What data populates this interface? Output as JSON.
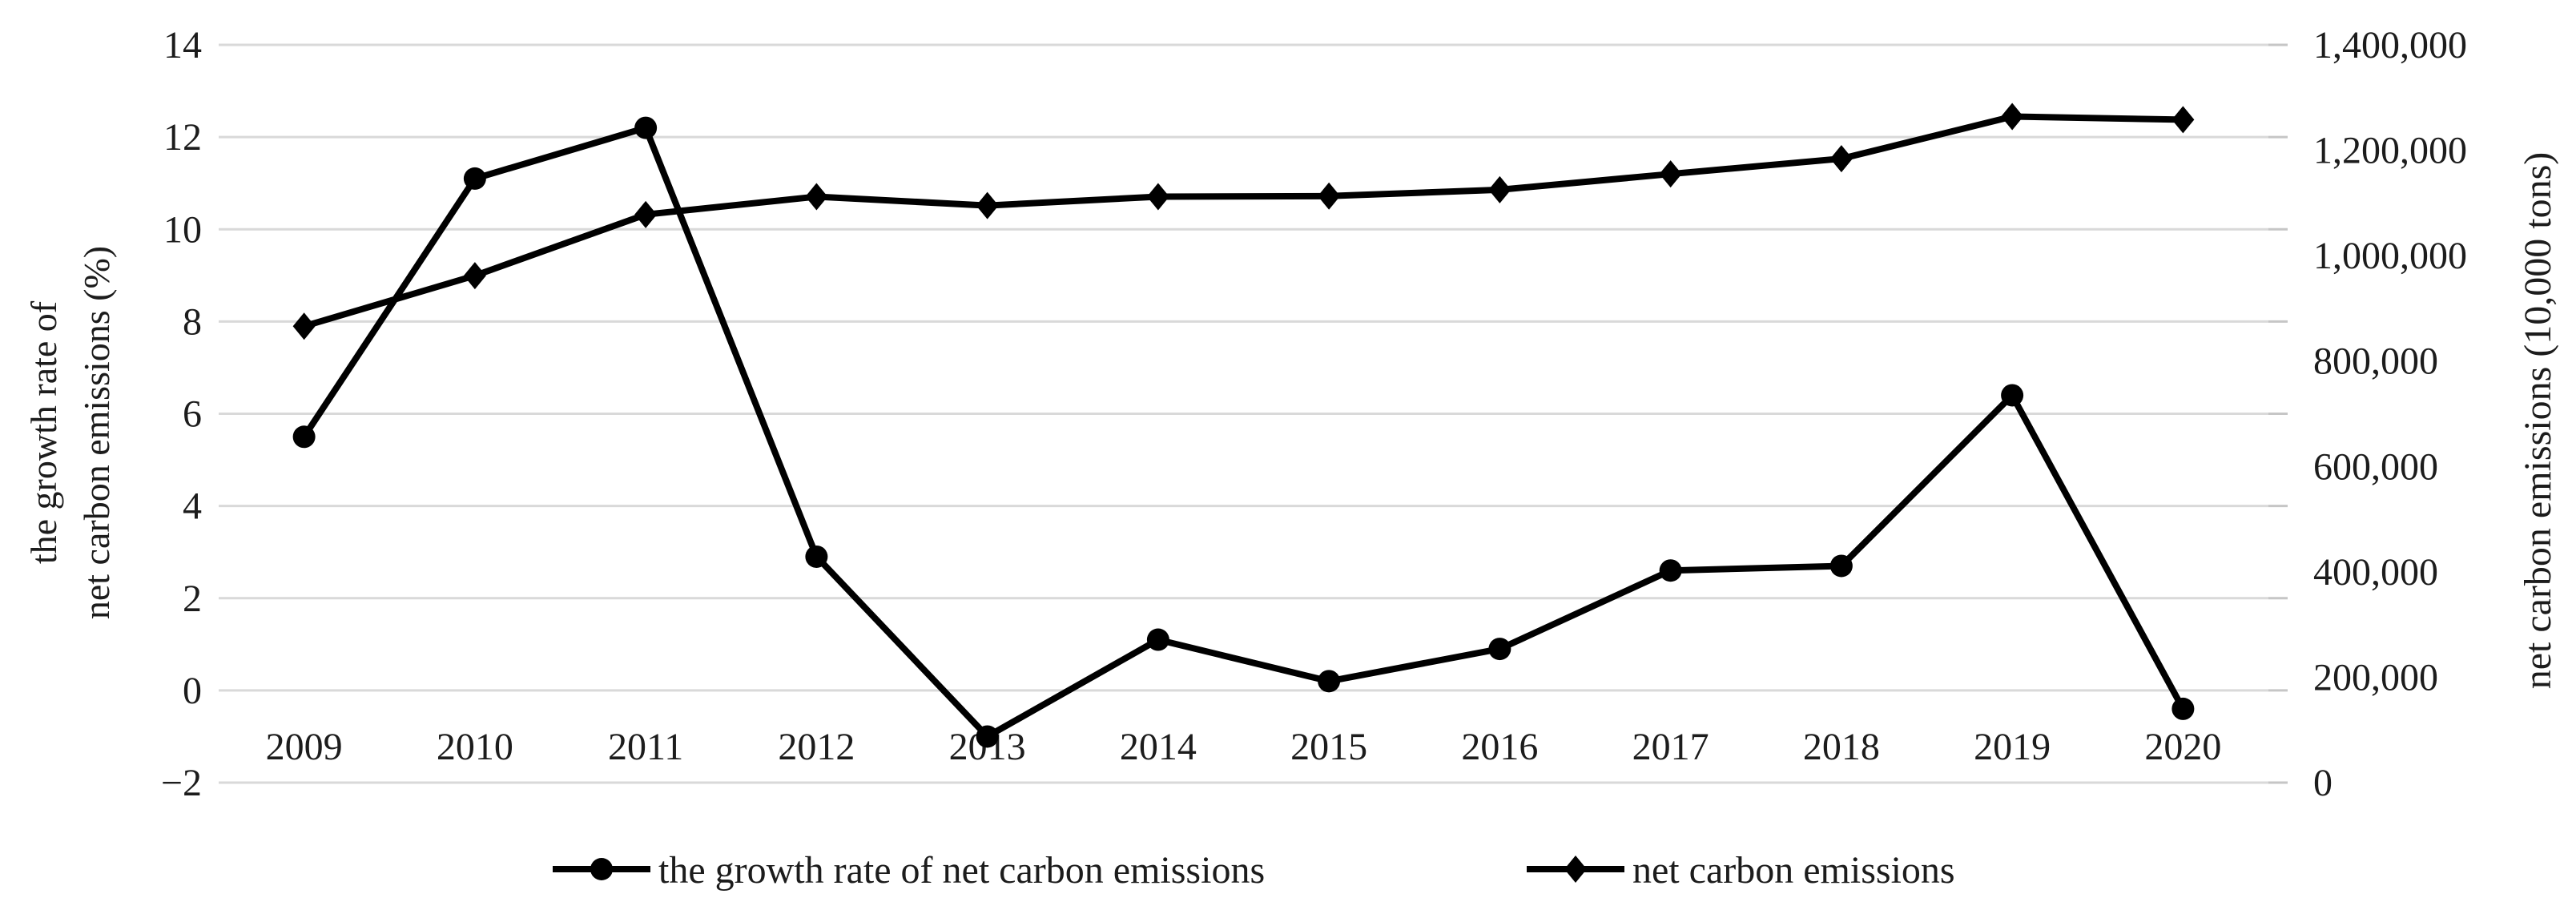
{
  "chart_data": {
    "type": "line",
    "title": "",
    "categories": [
      "2009",
      "2010",
      "2011",
      "2012",
      "2013",
      "2014",
      "2015",
      "2016",
      "2017",
      "2018",
      "2019",
      "2020"
    ],
    "series": [
      {
        "name": "the growth rate of net carbon emissions",
        "axis": "left",
        "marker": "circle",
        "color": "#000000",
        "values": [
          5.5,
          11.1,
          12.2,
          2.9,
          -1.0,
          1.1,
          0.2,
          0.9,
          2.6,
          2.7,
          6.4,
          -0.4
        ]
      },
      {
        "name": "net carbon emissions",
        "axis": "right",
        "marker": "diamond",
        "color": "#000000",
        "values": [
          866000,
          962000,
          1078000,
          1112000,
          1095000,
          1112000,
          1113000,
          1125000,
          1155000,
          1184000,
          1264000,
          1258000
        ]
      }
    ],
    "left_axis": {
      "title_lines": [
        "the growth rate of",
        "net carbon emissions (%)"
      ],
      "min": -2,
      "max": 14,
      "tick_step": 2,
      "tick_labels": [
        "14",
        "12",
        "10",
        "8",
        "6",
        "4",
        "2",
        "0",
        "−2"
      ]
    },
    "right_axis": {
      "title": "net carbon emissions (10,000 tons)",
      "min": 0,
      "max": 1400000,
      "tick_step": 200000,
      "tick_labels": [
        "1,400,000",
        "1,200,000",
        "1,000,000",
        "800,000",
        "600,000",
        "400,000",
        "200,000",
        "0"
      ]
    },
    "legend": {
      "position": "bottom",
      "entries": [
        {
          "label": "the growth rate of net carbon emissions",
          "marker": "circle"
        },
        {
          "label": "net carbon emissions",
          "marker": "diamond"
        }
      ]
    },
    "grid": true,
    "colors": {
      "series": "#000000",
      "gridline": "#d9d9d9",
      "tick": "#c6c6c6",
      "text": "#1c1c1c",
      "background": "#ffffff"
    }
  }
}
